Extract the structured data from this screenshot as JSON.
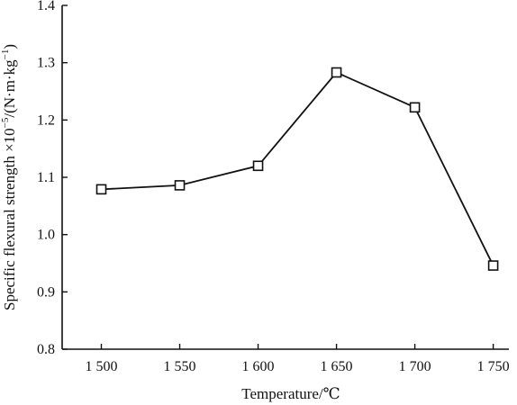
{
  "chart_data": {
    "type": "line",
    "xlabel": "Temperature/℃",
    "ylabel": "Specific flexural strength ×10",
    "ylabel_exponent": "−5",
    "ylabel_unit": "/(N·m·kg",
    "ylabel_unit_exponent": "−1",
    "ylabel_unit_close": ")",
    "x_tick_labels": [
      "1 500",
      "1 550",
      "1 600",
      "1 650",
      "1 700",
      "1 750"
    ],
    "y_tick_labels": [
      "0.8",
      "0.9",
      "1.0",
      "1.1",
      "1.2",
      "1.3",
      "1.4"
    ],
    "xlim": [
      1475,
      1760
    ],
    "ylim": [
      0.8,
      1.4
    ],
    "x_ticks": [
      1500,
      1550,
      1600,
      1650,
      1700,
      1750
    ],
    "y_ticks": [
      0.8,
      0.9,
      1.0,
      1.1,
      1.2,
      1.3,
      1.4
    ],
    "grid": false,
    "marker": "open-square",
    "series": [
      {
        "x": [
          1500,
          1550,
          1600,
          1650,
          1700,
          1750
        ],
        "values": [
          1.079,
          1.086,
          1.12,
          1.283,
          1.222,
          0.946
        ]
      }
    ]
  }
}
